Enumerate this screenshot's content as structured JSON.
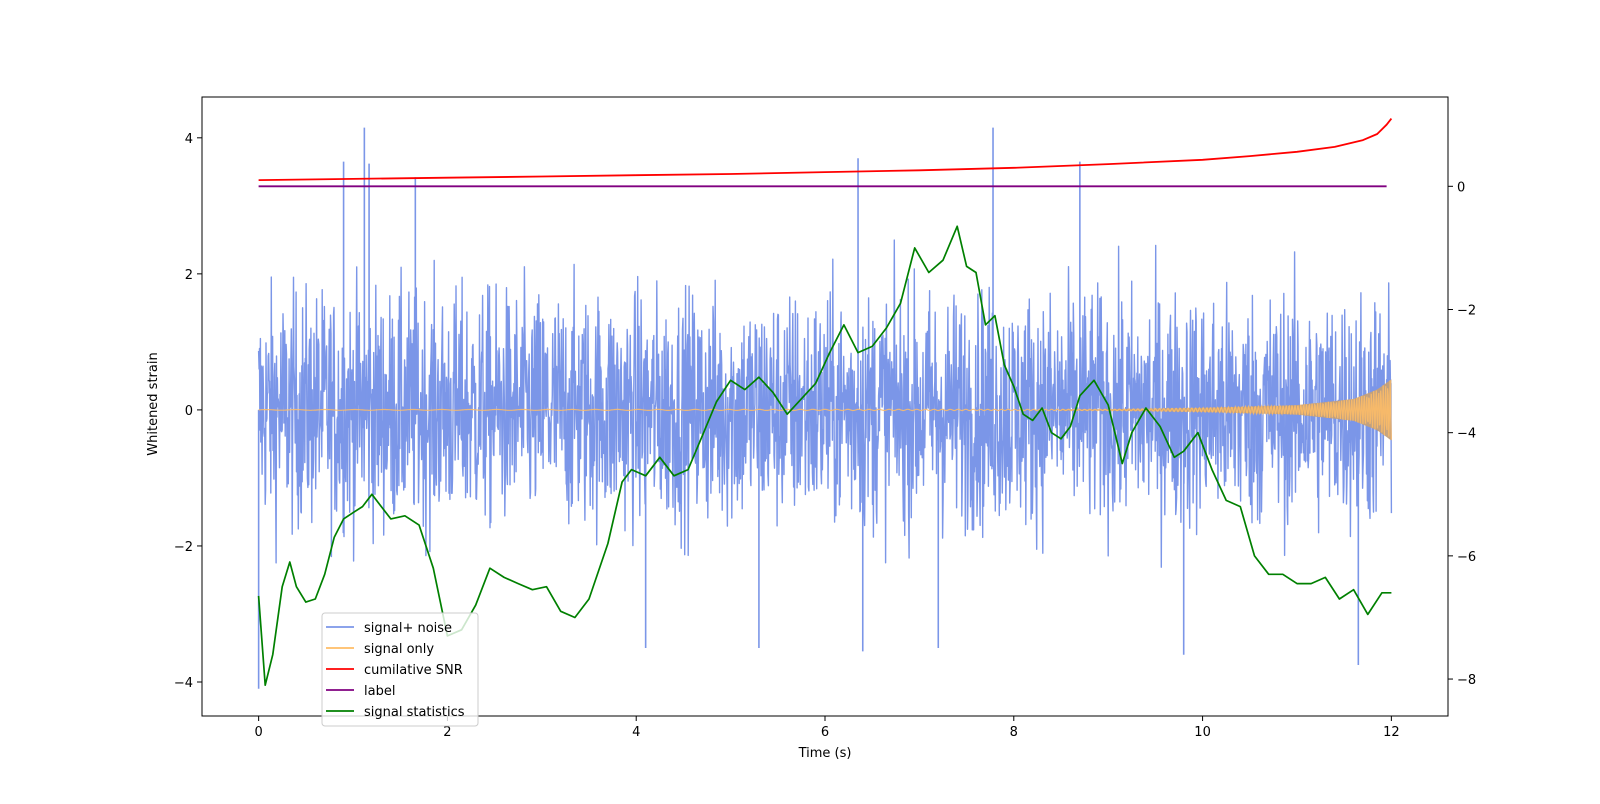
{
  "chart_data": {
    "type": "line",
    "xlabel": "Time (s)",
    "ylabel": "Whitened strain",
    "xlim": [
      -0.6,
      12.6
    ],
    "ylim": [
      -4.5,
      4.6
    ],
    "ylim_right": [
      -8.6,
      1.45
    ],
    "x_ticks": [
      0,
      2,
      4,
      6,
      8,
      10,
      12
    ],
    "y_ticks": [
      -4,
      -2,
      0,
      2,
      4
    ],
    "y2_ticks": [
      -8,
      -6,
      -4,
      -2,
      0
    ],
    "grid": false,
    "legend_position": "lower-left",
    "colors": {
      "signal_noise": "#7b96e8",
      "signal_only": "#ffbd66",
      "snr": "#ff0000",
      "label": "#800080",
      "stats": "#008000"
    },
    "series": [
      {
        "name": "signal+ noise",
        "axis": "left",
        "description": "dense noise roughly uniform over 0–12 s, band about ±2.5 with occasional spikes",
        "spikes": [
          {
            "x": 0.0,
            "y": -4.1
          },
          {
            "x": 0.9,
            "y": 3.65
          },
          {
            "x": 1.12,
            "y": 4.15
          },
          {
            "x": 1.17,
            "y": 3.62
          },
          {
            "x": 1.66,
            "y": 3.42
          },
          {
            "x": 4.1,
            "y": -3.5
          },
          {
            "x": 5.3,
            "y": -3.5
          },
          {
            "x": 6.35,
            "y": 3.7
          },
          {
            "x": 6.4,
            "y": -3.55
          },
          {
            "x": 7.78,
            "y": 4.15
          },
          {
            "x": 7.2,
            "y": -3.5
          },
          {
            "x": 8.7,
            "y": 3.65
          },
          {
            "x": 9.8,
            "y": -3.6
          },
          {
            "x": 11.65,
            "y": -3.75
          }
        ]
      },
      {
        "name": "signal only",
        "axis": "left",
        "description": "chirp near zero amplitude that grows toward 12 s",
        "envelope": [
          [
            0,
            0.005
          ],
          [
            9.0,
            0.01
          ],
          [
            10.0,
            0.03
          ],
          [
            11.0,
            0.07
          ],
          [
            11.6,
            0.16
          ],
          [
            11.85,
            0.3
          ],
          [
            12.0,
            0.45
          ]
        ]
      },
      {
        "name": "cumilative SNR",
        "axis": "right",
        "points": [
          [
            0.0,
            0.1
          ],
          [
            1,
            0.12
          ],
          [
            2,
            0.14
          ],
          [
            3,
            0.16
          ],
          [
            4,
            0.18
          ],
          [
            5,
            0.2
          ],
          [
            6,
            0.23
          ],
          [
            7,
            0.26
          ],
          [
            8,
            0.3
          ],
          [
            9,
            0.36
          ],
          [
            10,
            0.43
          ],
          [
            10.5,
            0.49
          ],
          [
            11,
            0.56
          ],
          [
            11.4,
            0.64
          ],
          [
            11.7,
            0.75
          ],
          [
            11.85,
            0.85
          ],
          [
            11.95,
            1.0
          ],
          [
            12.0,
            1.1
          ]
        ]
      },
      {
        "name": "label",
        "axis": "right",
        "points": [
          [
            0.0,
            0.0
          ],
          [
            11.95,
            0.0
          ]
        ]
      },
      {
        "name": "signal statistics",
        "axis": "right",
        "points": [
          [
            0.0,
            -6.65
          ],
          [
            0.07,
            -8.1
          ],
          [
            0.15,
            -7.6
          ],
          [
            0.25,
            -6.5
          ],
          [
            0.33,
            -6.1
          ],
          [
            0.4,
            -6.5
          ],
          [
            0.5,
            -6.75
          ],
          [
            0.6,
            -6.7
          ],
          [
            0.7,
            -6.3
          ],
          [
            0.8,
            -5.7
          ],
          [
            0.9,
            -5.4
          ],
          [
            1.0,
            -5.3
          ],
          [
            1.1,
            -5.2
          ],
          [
            1.2,
            -5.0
          ],
          [
            1.3,
            -5.2
          ],
          [
            1.4,
            -5.4
          ],
          [
            1.55,
            -5.35
          ],
          [
            1.7,
            -5.5
          ],
          [
            1.85,
            -6.2
          ],
          [
            2.0,
            -7.3
          ],
          [
            2.15,
            -7.2
          ],
          [
            2.3,
            -6.8
          ],
          [
            2.45,
            -6.2
          ],
          [
            2.6,
            -6.35
          ],
          [
            2.75,
            -6.45
          ],
          [
            2.9,
            -6.55
          ],
          [
            3.05,
            -6.5
          ],
          [
            3.2,
            -6.9
          ],
          [
            3.35,
            -7.0
          ],
          [
            3.5,
            -6.7
          ],
          [
            3.7,
            -5.8
          ],
          [
            3.85,
            -4.8
          ],
          [
            3.95,
            -4.6
          ],
          [
            4.1,
            -4.7
          ],
          [
            4.25,
            -4.4
          ],
          [
            4.4,
            -4.7
          ],
          [
            4.55,
            -4.6
          ],
          [
            4.7,
            -4.05
          ],
          [
            4.85,
            -3.5
          ],
          [
            5.0,
            -3.15
          ],
          [
            5.15,
            -3.3
          ],
          [
            5.3,
            -3.1
          ],
          [
            5.45,
            -3.35
          ],
          [
            5.6,
            -3.7
          ],
          [
            5.75,
            -3.45
          ],
          [
            5.9,
            -3.2
          ],
          [
            6.05,
            -2.7
          ],
          [
            6.2,
            -2.25
          ],
          [
            6.35,
            -2.7
          ],
          [
            6.5,
            -2.6
          ],
          [
            6.65,
            -2.3
          ],
          [
            6.8,
            -1.9
          ],
          [
            6.95,
            -1.0
          ],
          [
            7.1,
            -1.4
          ],
          [
            7.25,
            -1.2
          ],
          [
            7.4,
            -0.65
          ],
          [
            7.5,
            -1.3
          ],
          [
            7.6,
            -1.4
          ],
          [
            7.7,
            -2.25
          ],
          [
            7.8,
            -2.1
          ],
          [
            7.9,
            -2.9
          ],
          [
            8.0,
            -3.25
          ],
          [
            8.1,
            -3.7
          ],
          [
            8.2,
            -3.8
          ],
          [
            8.3,
            -3.6
          ],
          [
            8.4,
            -4.0
          ],
          [
            8.5,
            -4.1
          ],
          [
            8.6,
            -3.9
          ],
          [
            8.7,
            -3.4
          ],
          [
            8.85,
            -3.15
          ],
          [
            9.0,
            -3.55
          ],
          [
            9.15,
            -4.5
          ],
          [
            9.25,
            -4.0
          ],
          [
            9.4,
            -3.6
          ],
          [
            9.55,
            -3.9
          ],
          [
            9.7,
            -4.4
          ],
          [
            9.8,
            -4.3
          ],
          [
            9.95,
            -4.0
          ],
          [
            10.1,
            -4.6
          ],
          [
            10.25,
            -5.1
          ],
          [
            10.4,
            -5.2
          ],
          [
            10.55,
            -6.0
          ],
          [
            10.7,
            -6.3
          ],
          [
            10.85,
            -6.3
          ],
          [
            11.0,
            -6.45
          ],
          [
            11.15,
            -6.45
          ],
          [
            11.3,
            -6.35
          ],
          [
            11.45,
            -6.7
          ],
          [
            11.6,
            -6.55
          ],
          [
            11.75,
            -6.95
          ],
          [
            11.9,
            -6.6
          ],
          [
            12.0,
            -6.6
          ]
        ]
      }
    ]
  }
}
